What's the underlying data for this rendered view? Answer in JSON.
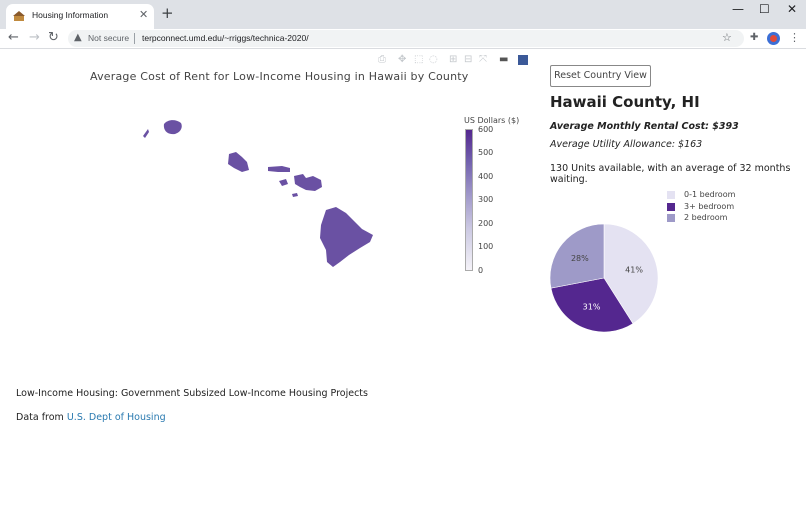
{
  "browser": {
    "tab_title": "Housing Information",
    "not_secure": "Not secure",
    "url": "terpconnect.umd.edu/~rriggs/technica-2020/"
  },
  "map": {
    "title": "Average Cost of Rent for Low-Income Housing in Hawaii by County",
    "colorbar_title": "US Dollars ($)",
    "colorbar_ticks": [
      "600",
      "500",
      "400",
      "300",
      "200",
      "100",
      "0"
    ],
    "fill_color": "#6a51a3"
  },
  "details": {
    "reset_button": "Reset Country View",
    "county": "Hawaii County, HI",
    "rent": "Average Monthly Rental Cost: $393",
    "utility": "Average Utility Allowance: $163",
    "units": "130 Units available, with an average of 32 months waiting."
  },
  "chart_data": {
    "type": "pie",
    "categories": [
      "0-1 bedroom",
      "3+ bedroom",
      "2 bedroom"
    ],
    "values": [
      41,
      31,
      28
    ],
    "labels": [
      "41%",
      "31%",
      "28%"
    ],
    "colors": [
      "#e4e2f2",
      "#54278f",
      "#9e9ac8"
    ],
    "legend": "top-right"
  },
  "footer": {
    "line1": "Low-Income Housing: Government Subsized Low-Income Housing Projects",
    "data_from": "Data from",
    "link": "U.S. Dept of Housing"
  }
}
